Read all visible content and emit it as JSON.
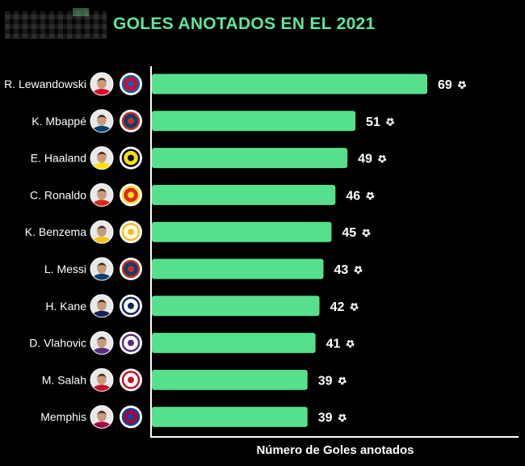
{
  "header": {
    "title": "GOLES ANOTADOS EN EL 2021"
  },
  "colors": {
    "bar": "#57e08c",
    "title": "#5ee69a",
    "background": "#000000",
    "text": "#ffffff",
    "axis": "#ffffff"
  },
  "chart_data": {
    "type": "bar",
    "orientation": "horizontal",
    "title": "GOLES ANOTADOS EN EL 2021",
    "xlabel": "Número de Goles anotados",
    "ylabel": "",
    "xlim": [
      0,
      69
    ],
    "grid": false,
    "legend": "none",
    "value_icon": "soccer-ball-icon",
    "categories": [
      "R. Lewandowski",
      "K. Mbappé",
      "E. Haaland",
      "C. Ronaldo",
      "K. Benzema",
      "L. Messi",
      "H. Kane",
      "D. Vlahovic",
      "M. Salah",
      "Memphis"
    ],
    "values": [
      69,
      51,
      49,
      46,
      45,
      43,
      42,
      41,
      39,
      39
    ],
    "value_labels": [
      "69",
      "51",
      "49",
      "46",
      "45",
      "43",
      "42",
      "41",
      "39",
      "39"
    ],
    "row_icons": [
      {
        "photo": "player-photo-icon",
        "club": "bayern-munich-crest-icon",
        "club_colors": [
          "#dc052d",
          "#0066b2"
        ]
      },
      {
        "photo": "player-photo-icon",
        "club": "psg-crest-icon",
        "club_colors": [
          "#004170",
          "#da291c"
        ]
      },
      {
        "photo": "player-photo-icon",
        "club": "borussia-dortmund-crest-icon",
        "club_colors": [
          "#fde100",
          "#000000"
        ]
      },
      {
        "photo": "player-photo-icon",
        "club": "manchester-united-crest-icon",
        "club_colors": [
          "#da291c",
          "#fbe122"
        ]
      },
      {
        "photo": "player-photo-icon",
        "club": "real-madrid-crest-icon",
        "club_colors": [
          "#ffffff",
          "#febe10"
        ]
      },
      {
        "photo": "player-photo-icon",
        "club": "psg-crest-icon",
        "club_colors": [
          "#004170",
          "#da291c"
        ]
      },
      {
        "photo": "player-photo-icon",
        "club": "tottenham-crest-icon",
        "club_colors": [
          "#ffffff",
          "#132257"
        ]
      },
      {
        "photo": "player-photo-icon",
        "club": "fiorentina-crest-icon",
        "club_colors": [
          "#ffffff",
          "#5b2b82"
        ]
      },
      {
        "photo": "player-photo-icon",
        "club": "liverpool-crest-icon",
        "club_colors": [
          "#ffffff",
          "#c8102e"
        ]
      },
      {
        "photo": "player-photo-icon",
        "club": "fc-barcelona-crest-icon",
        "club_colors": [
          "#a50044",
          "#004d98"
        ]
      }
    ]
  }
}
